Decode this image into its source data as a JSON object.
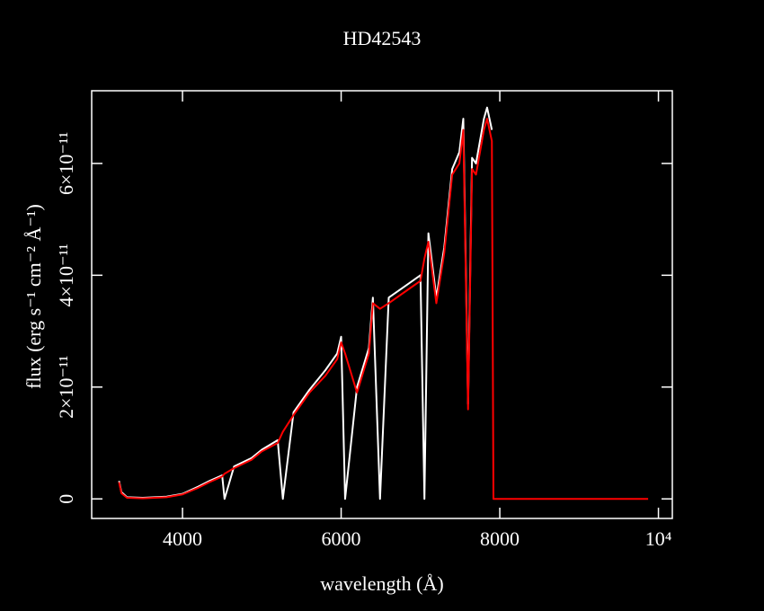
{
  "chart_data": {
    "type": "line",
    "title": "HD42543",
    "x_label": "wavelength (Å)",
    "y_label": "flux (erg s⁻¹ cm⁻² Å⁻¹)",
    "x": [
      3200,
      3230,
      3300,
      3500,
      3800,
      4000,
      4200,
      4340,
      4500,
      4530,
      4650,
      4870,
      5000,
      5200,
      5265,
      5400,
      5600,
      5800,
      5950,
      6000,
      6050,
      6200,
      6350,
      6400,
      6490,
      6600,
      6800,
      7000,
      7050,
      7100,
      7200,
      7300,
      7400,
      7490,
      7540,
      7600,
      7650,
      7700,
      7800,
      7840,
      7900,
      7920,
      8500,
      9000,
      9870
    ],
    "series": [
      {
        "name": "white",
        "color": "#ffffff",
        "values": [
          3.2e-12,
          1.2e-12,
          3e-13,
          2e-13,
          4e-13,
          9e-13,
          2.2e-12,
          3.2e-12,
          4.2e-12,
          0,
          5.8e-12,
          7.3e-12,
          8.8e-12,
          1.05e-11,
          0,
          1.55e-11,
          1.95e-11,
          2.3e-11,
          2.6e-11,
          2.9e-11,
          0,
          2e-11,
          2.7e-11,
          3.6e-11,
          0,
          3.6e-11,
          3.8e-11,
          4e-11,
          0,
          4.75e-11,
          3.6e-11,
          4.5e-11,
          5.9e-11,
          6.2e-11,
          6.8e-11,
          1.7e-11,
          6.1e-11,
          6e-11,
          6.8e-11,
          7e-11,
          6.6e-11,
          null,
          null,
          null,
          null
        ]
      },
      {
        "name": "red",
        "color": "#ff0000",
        "values": [
          3e-12,
          1e-12,
          2e-13,
          1e-13,
          3e-13,
          8e-13,
          2e-12,
          3e-12,
          4e-12,
          4.5e-12,
          5.5e-12,
          7e-12,
          8.5e-12,
          1e-11,
          1.2e-11,
          1.5e-11,
          1.9e-11,
          2.2e-11,
          2.5e-11,
          2.8e-11,
          2.6e-11,
          1.9e-11,
          2.6e-11,
          3.5e-11,
          3.4e-11,
          3.5e-11,
          3.7e-11,
          3.9e-11,
          4.3e-11,
          4.6e-11,
          3.5e-11,
          4.4e-11,
          5.8e-11,
          6e-11,
          6.6e-11,
          1.6e-11,
          5.9e-11,
          5.8e-11,
          6.6e-11,
          6.8e-11,
          6.4e-11,
          0,
          0,
          0,
          0
        ]
      }
    ],
    "xlim": [
      2855,
      10175
    ],
    "ylim": [
      -3.5e-12,
      7.3e-11
    ],
    "xticks": [
      4000,
      6000,
      8000,
      {
        "value": 10000,
        "label": "10⁴"
      }
    ],
    "yticks": [
      0,
      {
        "value": 2e-11,
        "label": "2×10⁻¹¹"
      },
      {
        "value": 4e-11,
        "label": "4×10⁻¹¹"
      },
      {
        "value": 6e-11,
        "label": "6×10⁻¹¹"
      }
    ]
  }
}
